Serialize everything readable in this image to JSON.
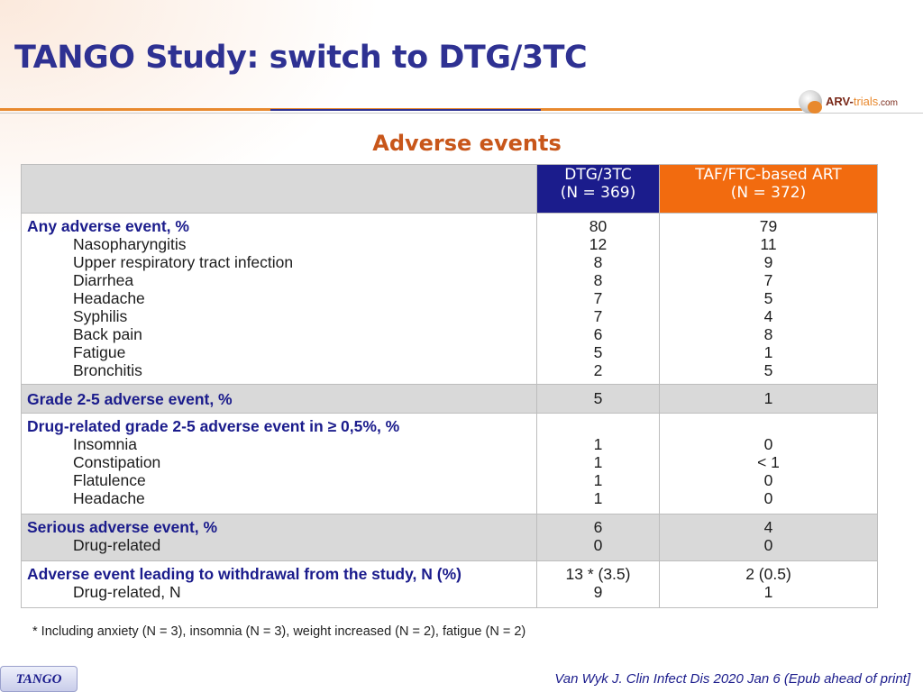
{
  "slide": {
    "title": "TANGO Study: switch to DTG/3TC",
    "logo": {
      "brand": "ARV-",
      "trials": "trials",
      "dotcom": ".com"
    },
    "subtitle": "Adverse events"
  },
  "table": {
    "columns": [
      {
        "name": "DTG/3TC",
        "n": "(N = 369)",
        "color": "#1b1c8c"
      },
      {
        "name": "TAF/FTC-based ART",
        "n": "(N = 372)",
        "color": "#f26b0f"
      }
    ],
    "sections": [
      {
        "header": "Any adverse event, %",
        "header_values": [
          "80",
          "79"
        ],
        "items": [
          {
            "label": "Nasopharyngitis",
            "values": [
              "12",
              "11"
            ]
          },
          {
            "label": "Upper respiratory tract infection",
            "values": [
              "8",
              "9"
            ]
          },
          {
            "label": "Diarrhea",
            "values": [
              "8",
              "7"
            ]
          },
          {
            "label": "Headache",
            "values": [
              "7",
              "5"
            ]
          },
          {
            "label": "Syphilis",
            "values": [
              "7",
              "4"
            ]
          },
          {
            "label": "Back pain",
            "values": [
              "6",
              "8"
            ]
          },
          {
            "label": "Fatigue",
            "values": [
              "5",
              "1"
            ]
          },
          {
            "label": "Bronchitis",
            "values": [
              "2",
              "5"
            ]
          }
        ]
      },
      {
        "header": "Grade 2-5 adverse event, %",
        "header_values": [
          "5",
          "1"
        ],
        "items": []
      },
      {
        "header": "Drug-related grade 2-5 adverse event in ≥ 0,5%, %",
        "header_values": [
          "",
          ""
        ],
        "items": [
          {
            "label": "Insomnia",
            "values": [
              "1",
              "0"
            ]
          },
          {
            "label": "Constipation",
            "values": [
              "1",
              "< 1"
            ]
          },
          {
            "label": "Flatulence",
            "values": [
              "1",
              "0"
            ]
          },
          {
            "label": "Headache",
            "values": [
              "1",
              "0"
            ]
          }
        ]
      },
      {
        "header": "Serious adverse event, %",
        "header_values": [
          "6",
          "4"
        ],
        "items": [
          {
            "label": "Drug-related",
            "values": [
              "0",
              "0"
            ]
          }
        ]
      },
      {
        "header": "Adverse event leading to withdrawal from the study, N (%)",
        "header_values": [
          "13 * (3.5)",
          "2 (0.5)"
        ],
        "items": [
          {
            "label": "Drug-related, N",
            "values": [
              "9",
              "1"
            ]
          }
        ]
      }
    ]
  },
  "footnote": "* Including anxiety (N = 3), insomnia (N = 3), weight increased (N = 2), fatigue (N = 2)",
  "badge": "TANGO",
  "citation": "Van Wyk J. Clin Infect Dis 2020 Jan 6 (Epub ahead of print]"
}
